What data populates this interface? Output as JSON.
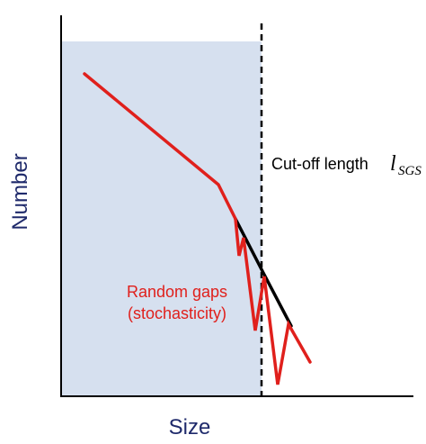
{
  "labels": {
    "y_axis": "Number",
    "x_axis": "Size",
    "cutoff_text": "Cut-off length",
    "cutoff_symbol": "l",
    "cutoff_subscript": "SGS",
    "random_gaps_line1": "Random gaps",
    "random_gaps_line2": "(stochasticity)"
  },
  "colors": {
    "axes": "#000000",
    "shaded_region": "#d6e0ef",
    "red_curve": "#e0201c",
    "black_curve": "#000000",
    "axis_label": "#1f2a6b",
    "annotation_red": "#e0201c"
  }
}
